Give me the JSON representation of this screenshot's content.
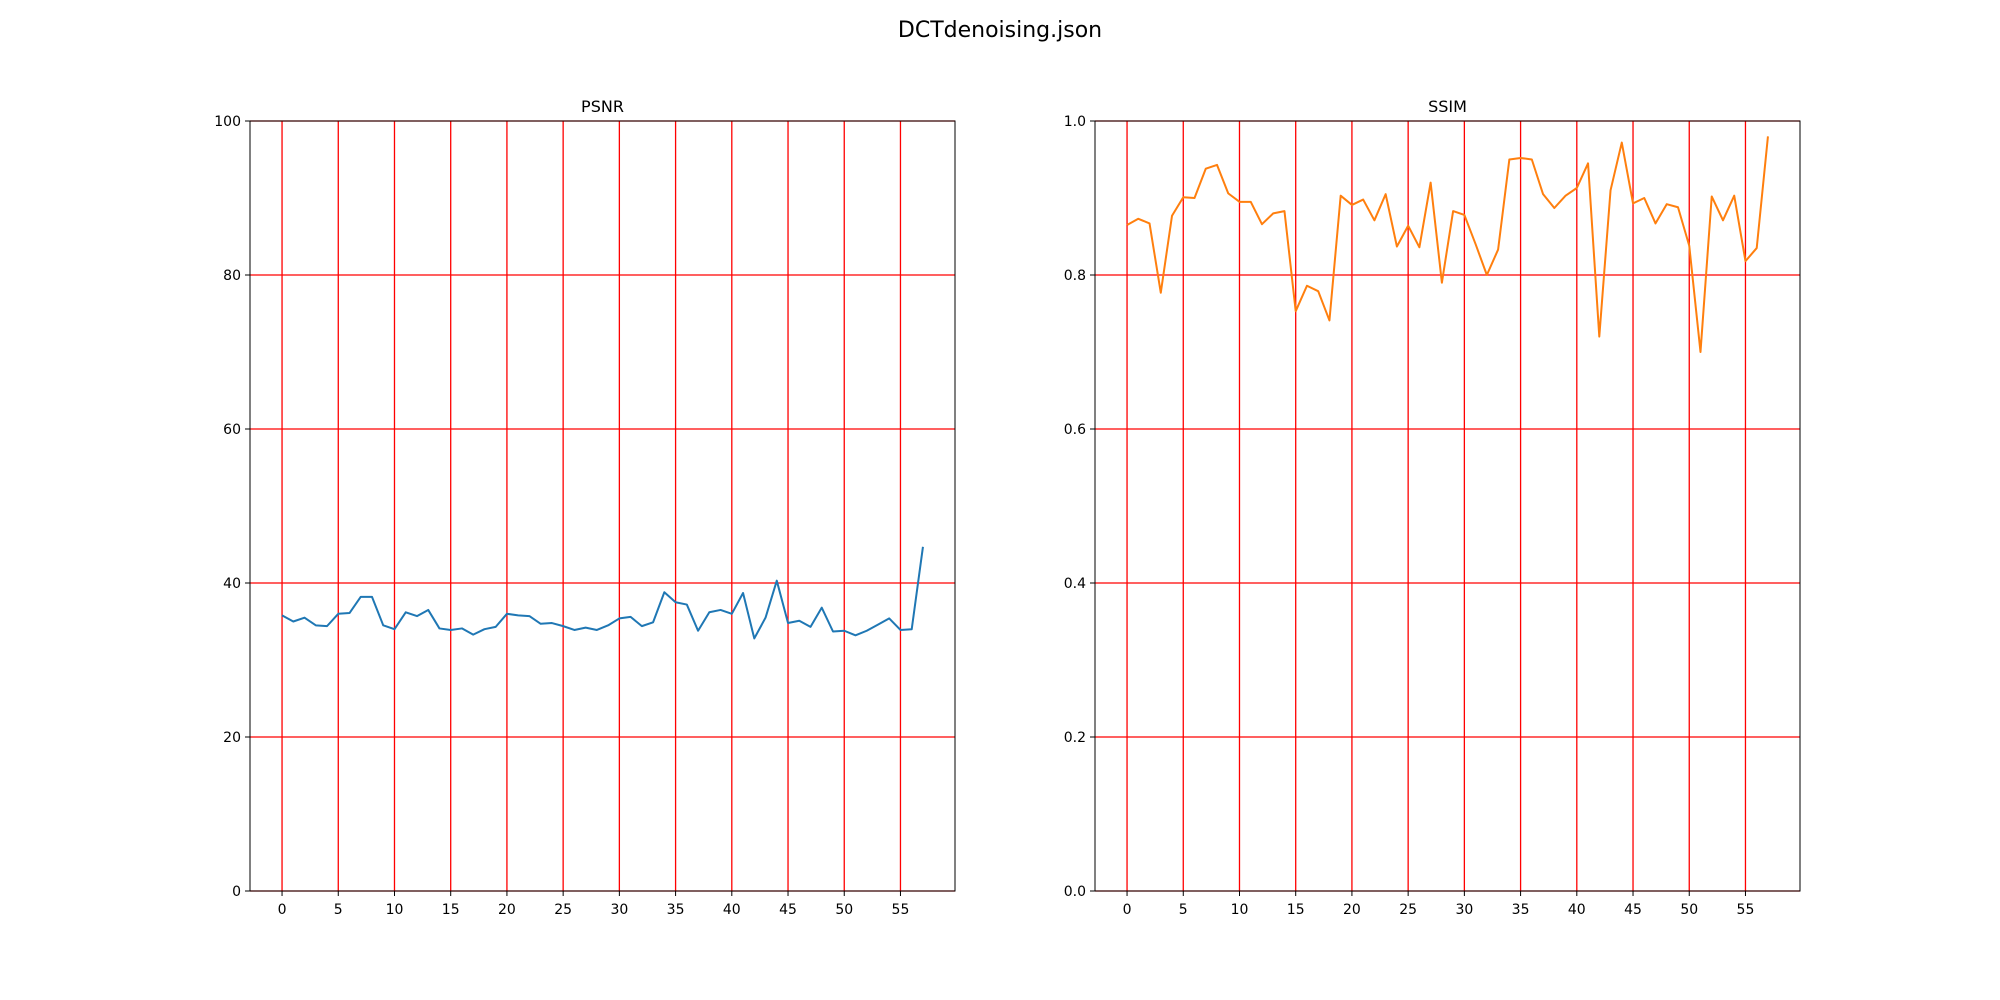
{
  "figure": {
    "title": "DCTdenoising.json"
  },
  "chart_data": [
    {
      "type": "line",
      "title": "PSNR",
      "xlabel": "",
      "ylabel": "",
      "xlim": [
        -2.85,
        59.85
      ],
      "ylim": [
        0,
        100
      ],
      "xticks": [
        0,
        5,
        10,
        15,
        20,
        25,
        30,
        35,
        40,
        45,
        50,
        55
      ],
      "yticks": [
        0,
        20,
        40,
        60,
        80,
        100
      ],
      "grid": true,
      "grid_color": "#ff0000",
      "series": [
        {
          "color": "#1f77b4",
          "x": [
            0,
            1,
            2,
            3,
            4,
            5,
            6,
            7,
            8,
            9,
            10,
            11,
            12,
            13,
            14,
            15,
            16,
            17,
            18,
            19,
            20,
            21,
            22,
            23,
            24,
            25,
            26,
            27,
            28,
            29,
            30,
            31,
            32,
            33,
            34,
            35,
            36,
            37,
            38,
            39,
            40,
            41,
            42,
            43,
            44,
            45,
            46,
            47,
            48,
            49,
            50,
            51,
            52,
            53,
            54,
            55,
            56,
            57
          ],
          "values": [
            35.8,
            35.0,
            35.5,
            34.5,
            34.4,
            36.0,
            36.1,
            38.2,
            38.2,
            34.5,
            34.0,
            36.2,
            35.7,
            36.5,
            34.1,
            33.9,
            34.1,
            33.3,
            34.0,
            34.3,
            36.0,
            35.8,
            35.7,
            34.7,
            34.8,
            34.4,
            33.9,
            34.2,
            33.9,
            34.5,
            35.4,
            35.6,
            34.4,
            34.9,
            38.8,
            37.5,
            37.2,
            33.8,
            36.2,
            36.5,
            36.0,
            38.7,
            32.8,
            35.5,
            40.3,
            34.8,
            35.1,
            34.3,
            36.8,
            33.7,
            33.8,
            33.2,
            33.8,
            34.6,
            35.4,
            33.9,
            34.0,
            44.7
          ]
        }
      ]
    },
    {
      "type": "line",
      "title": "SSIM",
      "xlabel": "",
      "ylabel": "",
      "xlim": [
        -2.85,
        59.85
      ],
      "ylim": [
        0.0,
        1.0
      ],
      "xticks": [
        0,
        5,
        10,
        15,
        20,
        25,
        30,
        35,
        40,
        45,
        50,
        55
      ],
      "yticks": [
        0.0,
        0.2,
        0.4,
        0.6,
        0.8,
        1.0
      ],
      "grid": true,
      "grid_color": "#ff0000",
      "series": [
        {
          "color": "#ff7f0e",
          "x": [
            0,
            1,
            2,
            3,
            4,
            5,
            6,
            7,
            8,
            9,
            10,
            11,
            12,
            13,
            14,
            15,
            16,
            17,
            18,
            19,
            20,
            21,
            22,
            23,
            24,
            25,
            26,
            27,
            28,
            29,
            30,
            31,
            32,
            33,
            34,
            35,
            36,
            37,
            38,
            39,
            40,
            41,
            42,
            43,
            44,
            45,
            46,
            47,
            48,
            49,
            50,
            51,
            52,
            53,
            54,
            55,
            56,
            57
          ],
          "values": [
            0.865,
            0.873,
            0.867,
            0.777,
            0.877,
            0.901,
            0.9,
            0.938,
            0.943,
            0.906,
            0.895,
            0.895,
            0.866,
            0.88,
            0.883,
            0.753,
            0.786,
            0.779,
            0.741,
            0.903,
            0.891,
            0.898,
            0.871,
            0.905,
            0.837,
            0.864,
            0.836,
            0.92,
            0.79,
            0.883,
            0.878,
            0.84,
            0.8,
            0.833,
            0.95,
            0.952,
            0.95,
            0.905,
            0.887,
            0.903,
            0.913,
            0.945,
            0.72,
            0.91,
            0.972,
            0.893,
            0.9,
            0.867,
            0.892,
            0.888,
            0.838,
            0.7,
            0.902,
            0.871,
            0.903,
            0.818,
            0.835,
            0.98
          ]
        }
      ]
    }
  ]
}
